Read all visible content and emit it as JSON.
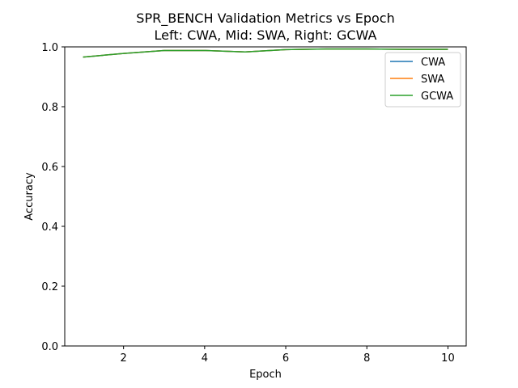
{
  "chart_data": {
    "type": "line",
    "title_line1": "SPR_BENCH Validation Metrics vs Epoch",
    "title_line2": "Left: CWA, Mid: SWA, Right: GCWA",
    "xlabel": "Epoch",
    "ylabel": "Accuracy",
    "xlim": [
      0.55,
      10.45
    ],
    "ylim": [
      0.0,
      1.0
    ],
    "xticks": [
      2,
      4,
      6,
      8,
      10
    ],
    "yticks": [
      0.0,
      0.2,
      0.4,
      0.6,
      0.8,
      1.0
    ],
    "xtick_labels": [
      "2",
      "4",
      "6",
      "8",
      "10"
    ],
    "ytick_labels": [
      "0.0",
      "0.2",
      "0.4",
      "0.6",
      "0.8",
      "1.0"
    ],
    "grid": false,
    "legend_position": "top-right",
    "x": [
      1,
      2,
      3,
      4,
      5,
      6,
      7,
      8,
      9,
      10
    ],
    "series": [
      {
        "name": "CWA",
        "color": "#1f77b4",
        "values": [
          0.966,
          0.978,
          0.988,
          0.988,
          0.983,
          0.991,
          0.993,
          0.993,
          0.992,
          0.992
        ]
      },
      {
        "name": "SWA",
        "color": "#ff7f0e",
        "values": [
          0.966,
          0.978,
          0.988,
          0.988,
          0.983,
          0.991,
          0.993,
          0.993,
          0.992,
          0.992
        ]
      },
      {
        "name": "GCWA",
        "color": "#2ca02c",
        "values": [
          0.966,
          0.978,
          0.988,
          0.988,
          0.983,
          0.991,
          0.993,
          0.993,
          0.992,
          0.992
        ]
      }
    ]
  }
}
